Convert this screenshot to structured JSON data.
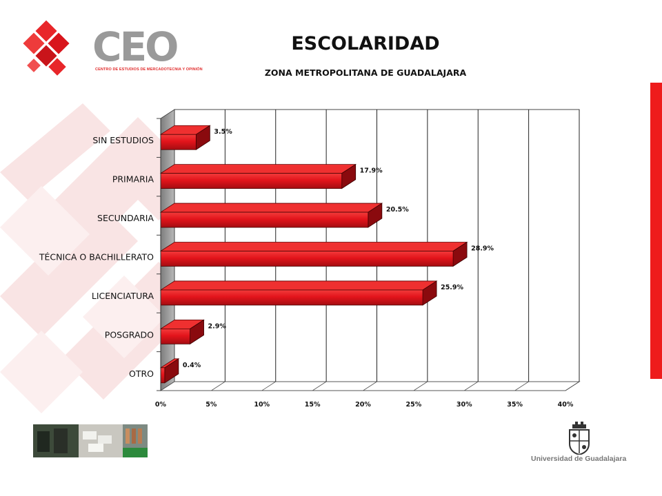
{
  "header": {
    "brand_name": "CEO",
    "brand_tagline": "CENTRO DE ESTUDIOS DE MERCADOTECNIA Y OPINIÓN",
    "title": "ESCOLARIDAD",
    "subtitle": "ZONA METROPOLITANA DE GUADALAJARA"
  },
  "footer": {
    "university": "Universidad de Guadalajara"
  },
  "colors": {
    "bar": "#e3141b",
    "bar_dark": "#8a0a0e",
    "accent": "#ee1c1c",
    "wall": "#9c9c9c"
  },
  "icons": [
    "ceo-logo-icon",
    "university-crest-icon",
    "photo-strip-icon"
  ],
  "chart_data": {
    "type": "bar",
    "orientation": "horizontal",
    "style": "3d",
    "title": "ESCOLARIDAD",
    "subtitle": "ZONA METROPOLITANA DE GUADALAJARA",
    "categories": [
      "SIN ESTUDIOS",
      "PRIMARIA",
      "SECUNDARIA",
      "TÉCNICA O BACHILLERATO",
      "LICENCIATURA",
      "POSGRADO",
      "OTRO"
    ],
    "values": [
      3.5,
      17.9,
      20.5,
      28.9,
      25.9,
      2.9,
      0.4
    ],
    "data_labels": [
      "3.5%",
      "17.9%",
      "20.5%",
      "28.9%",
      "25.9%",
      "2.9%",
      "0.4%"
    ],
    "xlim": [
      0,
      40
    ],
    "x_ticks": [
      0,
      5,
      10,
      15,
      20,
      25,
      30,
      35,
      40
    ],
    "x_tick_labels": [
      "0%",
      "5%",
      "10%",
      "15%",
      "20%",
      "25%",
      "30%",
      "35%",
      "40%"
    ],
    "xlabel": "",
    "ylabel": "",
    "grid": true,
    "legend": "none"
  }
}
